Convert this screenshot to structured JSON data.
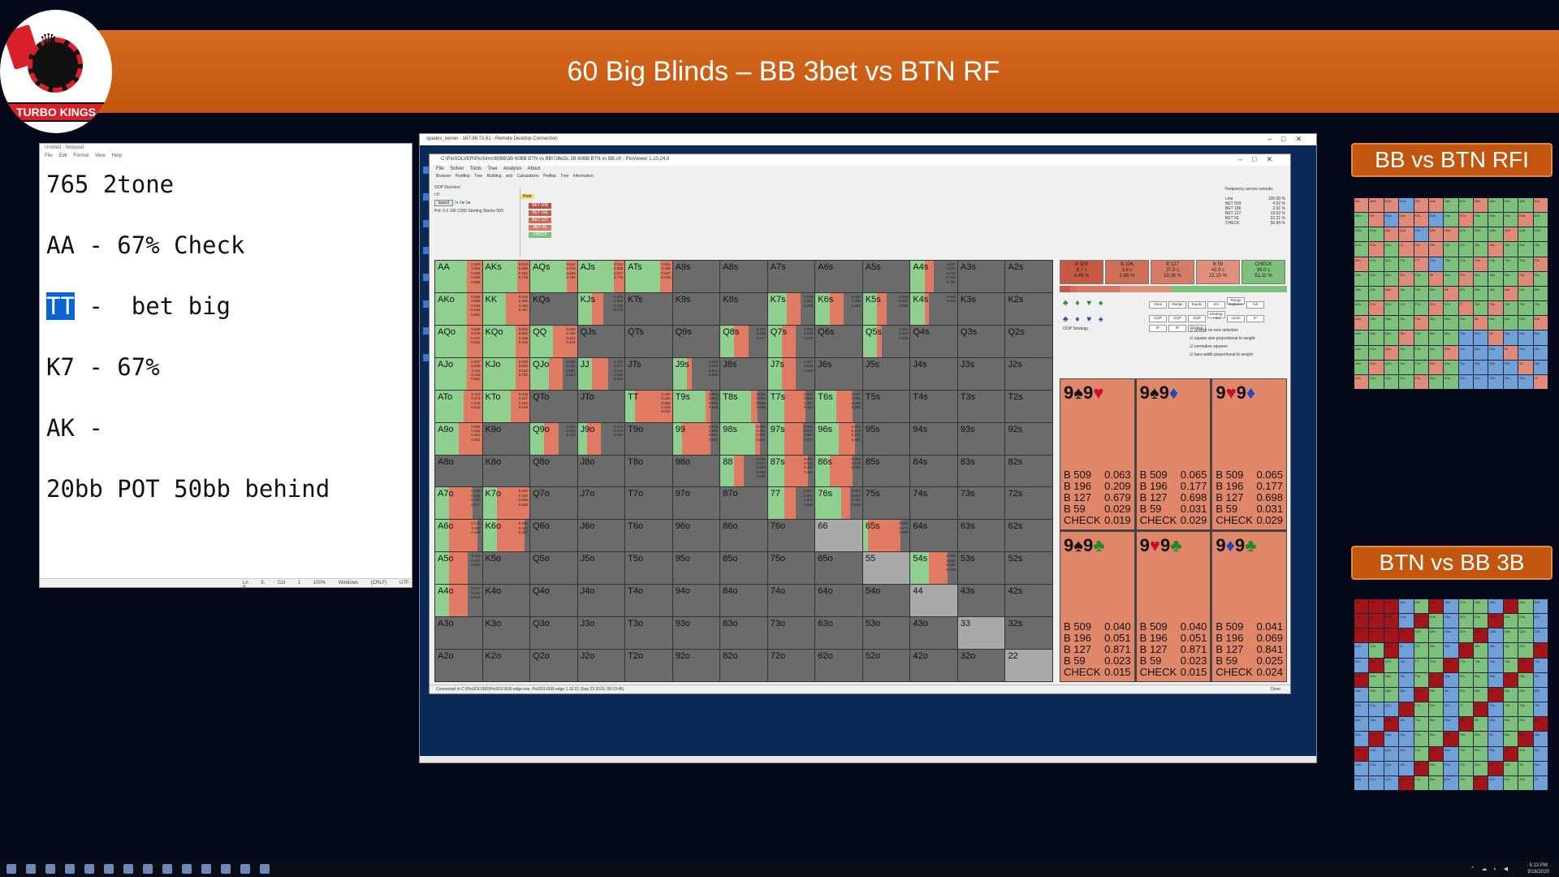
{
  "banner": {
    "title": "60 Big Blinds – BB 3bet vs BTN RF"
  },
  "logo": {
    "text": "TURBO KINGS"
  },
  "notepad": {
    "title": "Untitled - Notepad",
    "menu": "File Edit Format View Help",
    "lines": [
      {
        "hl": "",
        "rest": "765 2tone"
      },
      {
        "hl": "",
        "rest": "AA - 67% Check"
      },
      {
        "hl": "TT",
        "rest": " -  bet big"
      },
      {
        "hl": "",
        "rest": "K7 - 67%"
      },
      {
        "hl": "",
        "rest": "AK -"
      },
      {
        "hl": "",
        "rest": "20bb POT 50bb behind"
      }
    ],
    "status": "Ln 5, Col 1   100%   Windows (CRLF)   UTF-8"
  },
  "rdp": {
    "title": "spades_server - 167.86.72.61 - Remote Desktop Connection"
  },
  "pio": {
    "title": "C:\\PioSOLVER\\PioSims\\60BB\\3B 60BB BTN vs BB\\7d6c5c 3B 60BB BTN vs BB.cfr - PioViewer 1.10.24.0",
    "menu": "File Solver Tools Tree Analysis About",
    "tabs": "Browser  Postflop Tree Building and Calculations  Preflop  Tree Information",
    "oop_decision": "OOP Decision:",
    "r0": "r:0",
    "board_btn": "board",
    "board_cards": "7♦ 6♣ 5♣",
    "pot_info": "Pot: 0 0 196 (196) Starting Stacks 509",
    "tree_root": "Root",
    "tree_nodes": [
      "BET 509",
      "BET 196",
      "BET 127",
      "BET 59",
      "CHECK"
    ],
    "freq_title": "Frequency across runouts:",
    "freq_line_label": "Line",
    "freq_line_val": "100.00 %",
    "freq": [
      {
        "a": "BET 509",
        "v": "4.52 %"
      },
      {
        "a": "BET 196",
        "v": "2.91 %"
      },
      {
        "a": "BET 127",
        "v": "19.52 %"
      },
      {
        "a": "BET 59",
        "v": "22.21 %"
      },
      {
        "a": "CHECK",
        "v": "50.84 %"
      }
    ],
    "status": "Connected to C:\\PioSOLVER\\PioSOLVER-edge.exe. PioSOLVER-edge 1.10.21 (Sep 23 2019, 09:23:45)",
    "done": "Done"
  },
  "range_labels": [
    [
      "AA",
      "AKs",
      "AQs",
      "AJs",
      "ATs",
      "A9s",
      "A8s",
      "A7s",
      "A6s",
      "A5s",
      "A4s",
      "A3s",
      "A2s"
    ],
    [
      "AKo",
      "KK",
      "KQs",
      "KJs",
      "KTs",
      "K9s",
      "K8s",
      "K7s",
      "K6s",
      "K5s",
      "K4s",
      "K3s",
      "K2s"
    ],
    [
      "AQo",
      "KQo",
      "QQ",
      "QJs",
      "QTs",
      "Q9s",
      "Q8s",
      "Q7s",
      "Q6s",
      "Q5s",
      "Q4s",
      "Q3s",
      "Q2s"
    ],
    [
      "AJo",
      "KJo",
      "QJo",
      "JJ",
      "JTs",
      "J9s",
      "J8s",
      "J7s",
      "J6s",
      "J5s",
      "J4s",
      "J3s",
      "J2s"
    ],
    [
      "ATo",
      "KTo",
      "QTo",
      "JTo",
      "TT",
      "T9s",
      "T8s",
      "T7s",
      "T6s",
      "T5s",
      "T4s",
      "T3s",
      "T2s"
    ],
    [
      "A9o",
      "K9o",
      "Q9o",
      "J9o",
      "T9o",
      "99",
      "98s",
      "97s",
      "96s",
      "95s",
      "94s",
      "93s",
      "92s"
    ],
    [
      "A8o",
      "K8o",
      "Q8o",
      "J8o",
      "T8o",
      "98o",
      "88",
      "87s",
      "86s",
      "85s",
      "84s",
      "83s",
      "82s"
    ],
    [
      "A7o",
      "K7o",
      "Q7o",
      "J7o",
      "T7o",
      "97o",
      "87o",
      "77",
      "76s",
      "75s",
      "74s",
      "73s",
      "72s"
    ],
    [
      "A6o",
      "K6o",
      "Q6o",
      "J6o",
      "T6o",
      "96o",
      "86o",
      "76o",
      "66",
      "65s",
      "64s",
      "63s",
      "62s"
    ],
    [
      "A5o",
      "K5o",
      "Q5o",
      "J5o",
      "T5o",
      "95o",
      "85o",
      "75o",
      "65o",
      "55",
      "54s",
      "53s",
      "52s"
    ],
    [
      "A4o",
      "K4o",
      "Q4o",
      "J4o",
      "T4o",
      "94o",
      "84o",
      "74o",
      "64o",
      "54o",
      "44",
      "43s",
      "42s"
    ],
    [
      "A3o",
      "K3o",
      "Q3o",
      "J3o",
      "T3o",
      "93o",
      "83o",
      "73o",
      "63o",
      "53o",
      "43o",
      "33",
      "32s"
    ],
    [
      "A2o",
      "K2o",
      "Q2o",
      "J2o",
      "T2o",
      "92o",
      "82o",
      "72o",
      "62o",
      "52o",
      "42o",
      "32o",
      "22"
    ]
  ],
  "range_cells": {
    "AA": {
      "g": 0.67,
      "r": 0.33,
      "f": [
        "0.000",
        "0.004",
        "0.009",
        "0.260",
        "0.668"
      ]
    },
    "AKs": {
      "g": 0.74,
      "r": 0.26,
      "f": [
        "0.013",
        "0.020",
        "0.241",
        "0.738"
      ]
    },
    "AQs": {
      "g": 0.78,
      "r": 0.22,
      "f": [
        "0.014",
        "0.015",
        "0.169",
        "0.792"
      ]
    },
    "AJs": {
      "g": 0.77,
      "r": 0.23,
      "f": [
        "0.012",
        "0.005",
        "0.147",
        "0.773"
      ]
    },
    "ATs": {
      "g": 0.75,
      "r": 0.25,
      "f": [
        "0.012",
        "0.158",
        "0.247",
        "0.575"
      ]
    },
    "A4s": {
      "g": 0.3,
      "r": 0.2,
      "f": [
        "0.047",
        "0.014",
        "0.012",
        "0.120",
        "0.780"
      ]
    },
    "AKo": {
      "g": 0.68,
      "r": 0.32,
      "f": [
        "0.024",
        "0.008",
        "0.031",
        "0.226",
        "0.681"
      ]
    },
    "KK": {
      "g": 0.5,
      "r": 0.5,
      "f": [
        "0.025",
        "0.020",
        "0.180",
        "0.467"
      ]
    },
    "KJs": {
      "g": 0.3,
      "r": 0.25,
      "f": [
        "0.005",
        "0.003",
        "0.194",
        "0.773"
      ]
    },
    "K7s": {
      "g": 0.4,
      "r": 0.3,
      "f": [
        "0.246",
        "0.861",
        "0.278"
      ]
    },
    "K6s": {
      "g": 0.3,
      "r": 0.3,
      "f": [
        "0.002",
        "0.266",
        "0.283"
      ]
    },
    "K5s": {
      "g": 0.3,
      "r": 0.2,
      "f": [
        "0.006",
        "0.062",
        "0.059"
      ]
    },
    "K4s": {
      "g": 0.3,
      "r": 0.1,
      "f": [
        "0.006",
        "0.009"
      ]
    },
    "AQo": {
      "g": 0.68,
      "r": 0.32,
      "f": [
        "0.025",
        "0.078",
        "0.227",
        "0.681"
      ]
    },
    "KQo": {
      "g": 0.71,
      "r": 0.29,
      "f": [
        "0.025",
        "0.023",
        "0.196",
        "0.729"
      ]
    },
    "QQ": {
      "g": 0.48,
      "r": 0.52,
      "f": [
        "0.030",
        "0.183",
        "0.314",
        "0.443"
      ]
    },
    "Q8s": {
      "g": 0.3,
      "r": 0.3,
      "f": [
        "0.211",
        "0.206",
        "0.677"
      ]
    },
    "Q7s": {
      "g": 0.3,
      "r": 0.3,
      "f": [
        "0.023",
        "0.030",
        "0.675"
      ]
    },
    "Q5s": {
      "g": 0.3,
      "r": 0.1,
      "f": [
        "0.014",
        "0.016",
        "0.678"
      ]
    },
    "AJo": {
      "g": 0.68,
      "r": 0.32,
      "f": [
        "0.037",
        "0.025",
        "0.111",
        "0.144",
        "0.681"
      ]
    },
    "KJo": {
      "g": 0.7,
      "r": 0.3,
      "f": [
        "0.030",
        "0.034",
        "0.124",
        "0.700"
      ]
    },
    "QJo": {
      "g": 0.4,
      "r": 0.3,
      "f": [
        "0.005",
        "0.181",
        "0.087",
        "0.527"
      ]
    },
    "JJ": {
      "g": 0.3,
      "r": 0.35,
      "f": [
        "0.153",
        "0.070",
        "0.416",
        "0.118",
        "0.203"
      ]
    },
    "J9s": {
      "g": 0.3,
      "r": 0.1,
      "f": [
        "0.005",
        "0.003",
        "0.002",
        "0.002"
      ]
    },
    "J7s": {
      "g": 0.3,
      "r": 0.3,
      "f": [
        "0.017",
        "0.035",
        "0.292"
      ]
    },
    "ATo": {
      "g": 0.6,
      "r": 0.4,
      "f": [
        "0.113",
        "0.173",
        "0.234",
        "0.415"
      ]
    },
    "KTo": {
      "g": 0.6,
      "r": 0.4,
      "f": [
        "0.078",
        "0.157",
        "0.234",
        "0.518"
      ]
    },
    "TT": {
      "g": 0.2,
      "r": 0.8,
      "f": [
        "0.190",
        "0.325",
        "0.056",
        "0.028",
        "0.002"
      ]
    },
    "T9s": {
      "g": 0.7,
      "r": 0.1,
      "f": [
        "0.004",
        "0.002",
        "0.006",
        "0.884"
      ]
    },
    "T8s": {
      "g": 0.65,
      "r": 0.15,
      "f": [
        "0.004",
        "0.002",
        "0.005",
        "0.802"
      ]
    },
    "T7s": {
      "g": 0.35,
      "r": 0.45,
      "f": [
        "0.005",
        "0.002",
        "0.497",
        "0.454"
      ]
    },
    "T6s": {
      "g": 0.45,
      "r": 0.35,
      "f": [
        "0.007",
        "0.001",
        "0.290",
        "0.689"
      ]
    },
    "A9o": {
      "g": 0.5,
      "r": 0.5,
      "f": [
        "0.004",
        "0.102",
        "0.461",
        "0.381"
      ]
    },
    "Q9o": {
      "g": 0.3,
      "r": 0.3,
      "f": [
        "0.010",
        "0.030",
        "0.343"
      ]
    },
    "J9o": {
      "g": 0.2,
      "r": 0.3,
      "f": [
        "0.013",
        "0.023",
        "0.752"
      ]
    },
    "99": {
      "g": 0.2,
      "r": 0.6,
      "f": [
        "0.072",
        "0.052",
        "0.832",
        "0.022"
      ]
    },
    "98s": {
      "g": 0.75,
      "r": 0.1,
      "f": [
        "0.004",
        "0.001",
        "0.001",
        "0.841"
      ]
    },
    "97s": {
      "g": 0.35,
      "r": 0.4,
      "f": [
        "0.026",
        "0.007",
        "0.567",
        "0.374"
      ]
    },
    "96s": {
      "g": 0.5,
      "r": 0.35,
      "f": [
        "0.034",
        "0.213",
        "0.231",
        "0.497"
      ]
    },
    "88": {
      "g": 0.3,
      "r": 0.2,
      "f": [
        "0.006",
        "0.002",
        "0.002",
        "0.002",
        "0.006"
      ]
    },
    "87s": {
      "g": 0.35,
      "r": 0.5,
      "f": [
        "0.001",
        "0.021",
        "0.497",
        "0.481"
      ]
    },
    "86s": {
      "g": 0.3,
      "r": 0.5,
      "f": [
        "0.008",
        "0.219",
        "0.493"
      ]
    },
    "K7o": {
      "g": 0.3,
      "r": 0.7,
      "f": [
        "0.034",
        "0.120",
        "0.068",
        "0.836"
      ]
    },
    "77": {
      "g": 0.35,
      "r": 0.25,
      "f": [
        "0.001",
        "0.002",
        "0.006",
        "0.624"
      ]
    },
    "76s": {
      "g": 0.55,
      "r": 0.2,
      "f": [
        "0.003",
        "0.000",
        "0.004",
        "0.813"
      ]
    },
    "A7o": {
      "g": 0.3,
      "r": 0.5,
      "f": [
        "0.124",
        "0.142",
        "0.197",
        "0.017"
      ]
    },
    "A6o": {
      "g": 0.3,
      "r": 0.6,
      "f": [
        "0.125",
        "0.115",
        "0.128"
      ]
    },
    "K6o": {
      "g": 0.3,
      "r": 0.6,
      "f": [
        "0.180",
        "0.343",
        "0.267"
      ]
    },
    "65s": {
      "g": 0.1,
      "r": 0.7,
      "f": [
        "0.020",
        "0.274",
        "0.200"
      ]
    },
    "54s": {
      "g": 0.4,
      "r": 0.4,
      "f": [
        "0.005",
        "0.243",
        "0.150",
        "0.535"
      ]
    },
    "A5o": {
      "g": 0.3,
      "r": 0.4,
      "f": [
        "0.116",
        "0.447",
        "0.518"
      ]
    },
    "A4o": {
      "g": 0.3,
      "r": 0.4,
      "f": [
        "0.217",
        "0.161",
        "0.524"
      ]
    },
    "66": {
      "gray": true
    },
    "55": {
      "gray": true
    },
    "44": {
      "gray": true
    },
    "33": {
      "gray": true
    },
    "22": {
      "gray": true
    }
  },
  "actions": [
    {
      "label": "B 509",
      "l2": "8.7 c",
      "l3": "4.49 %",
      "color": "#c65a45"
    },
    {
      "label": "B 196",
      "l2": "5.6 c",
      "l3": "2.88 %",
      "color": "#d06f58"
    },
    {
      "label": "B 127",
      "l2": "37.5 c",
      "l3": "19.36 %",
      "color": "#d67c66"
    },
    {
      "label": "B 59",
      "l2": "42.9 c",
      "l3": "22.15 %",
      "color": "#e0907a"
    },
    {
      "label": "CHECK",
      "l2": "99.0 c",
      "l3": "51.11 %",
      "color": "#7cc07c"
    }
  ],
  "panel_buttons": [
    "Clear",
    "Range",
    "Equity",
    "EV",
    "Range Explorer",
    "full",
    "OOP",
    "OOP",
    "OOP",
    "Strategy + EV",
    "zoom",
    "IP",
    "IP",
    "IP",
    "Strategy"
  ],
  "panel_checks": [
    "refresh on new selection",
    "square size proportional to weight",
    "normalize squares",
    "bars width proportional to weight"
  ],
  "oop_strategy_label": "OOP Strategy",
  "suits_row1": "♣ ♦ ♥ ♠",
  "suits_row2": "♣ ♦ ♥ ♠",
  "combos": [
    {
      "c1": "9",
      "s1": "♠",
      "k1": "k",
      "c2": "9",
      "s2": "♥",
      "k2": "r",
      "rows": [
        [
          "B 509",
          "0.063"
        ],
        [
          "B 196",
          "0.209"
        ],
        [
          "B 127",
          "0.679"
        ],
        [
          "B 59",
          "0.029"
        ],
        [
          "CHECK",
          "0.019"
        ]
      ]
    },
    {
      "c1": "9",
      "s1": "♠",
      "k1": "k",
      "c2": "9",
      "s2": "♦",
      "k2": "b",
      "rows": [
        [
          "B 509",
          "0.065"
        ],
        [
          "B 196",
          "0.177"
        ],
        [
          "B 127",
          "0.698"
        ],
        [
          "B 59",
          "0.031"
        ],
        [
          "CHECK",
          "0.029"
        ]
      ]
    },
    {
      "c1": "9",
      "s1": "♥",
      "k1": "r",
      "c2": "9",
      "s2": "♦",
      "k2": "b",
      "rows": [
        [
          "B 509",
          "0.065"
        ],
        [
          "B 196",
          "0.177"
        ],
        [
          "B 127",
          "0.698"
        ],
        [
          "B 59",
          "0.031"
        ],
        [
          "CHECK",
          "0.029"
        ]
      ]
    },
    {
      "c1": "9",
      "s1": "♠",
      "k1": "k",
      "c2": "9",
      "s2": "♣",
      "k2": "g",
      "rows": [
        [
          "B 509",
          "0.040"
        ],
        [
          "B 196",
          "0.051"
        ],
        [
          "B 127",
          "0.871"
        ],
        [
          "B 59",
          "0.023"
        ],
        [
          "CHECK",
          "0.015"
        ]
      ]
    },
    {
      "c1": "9",
      "s1": "♥",
      "k1": "r",
      "c2": "9",
      "s2": "♣",
      "k2": "g",
      "rows": [
        [
          "B 509",
          "0.040"
        ],
        [
          "B 196",
          "0.051"
        ],
        [
          "B 127",
          "0.871"
        ],
        [
          "B 59",
          "0.023"
        ],
        [
          "CHECK",
          "0.015"
        ]
      ]
    },
    {
      "c1": "9",
      "s1": "♦",
      "k1": "b",
      "c2": "9",
      "s2": "♣",
      "k2": "g",
      "rows": [
        [
          "B 509",
          "0.041"
        ],
        [
          "B 196",
          "0.069"
        ],
        [
          "B 127",
          "0.841"
        ],
        [
          "B 59",
          "0.025"
        ],
        [
          "CHECK",
          "0.024"
        ]
      ]
    }
  ],
  "side": {
    "label1": "BB vs BTN RFI",
    "label2": "BTN vs BB 3B"
  },
  "taskbar": {
    "time": "5:13 PM",
    "date": "9/16/2020"
  }
}
